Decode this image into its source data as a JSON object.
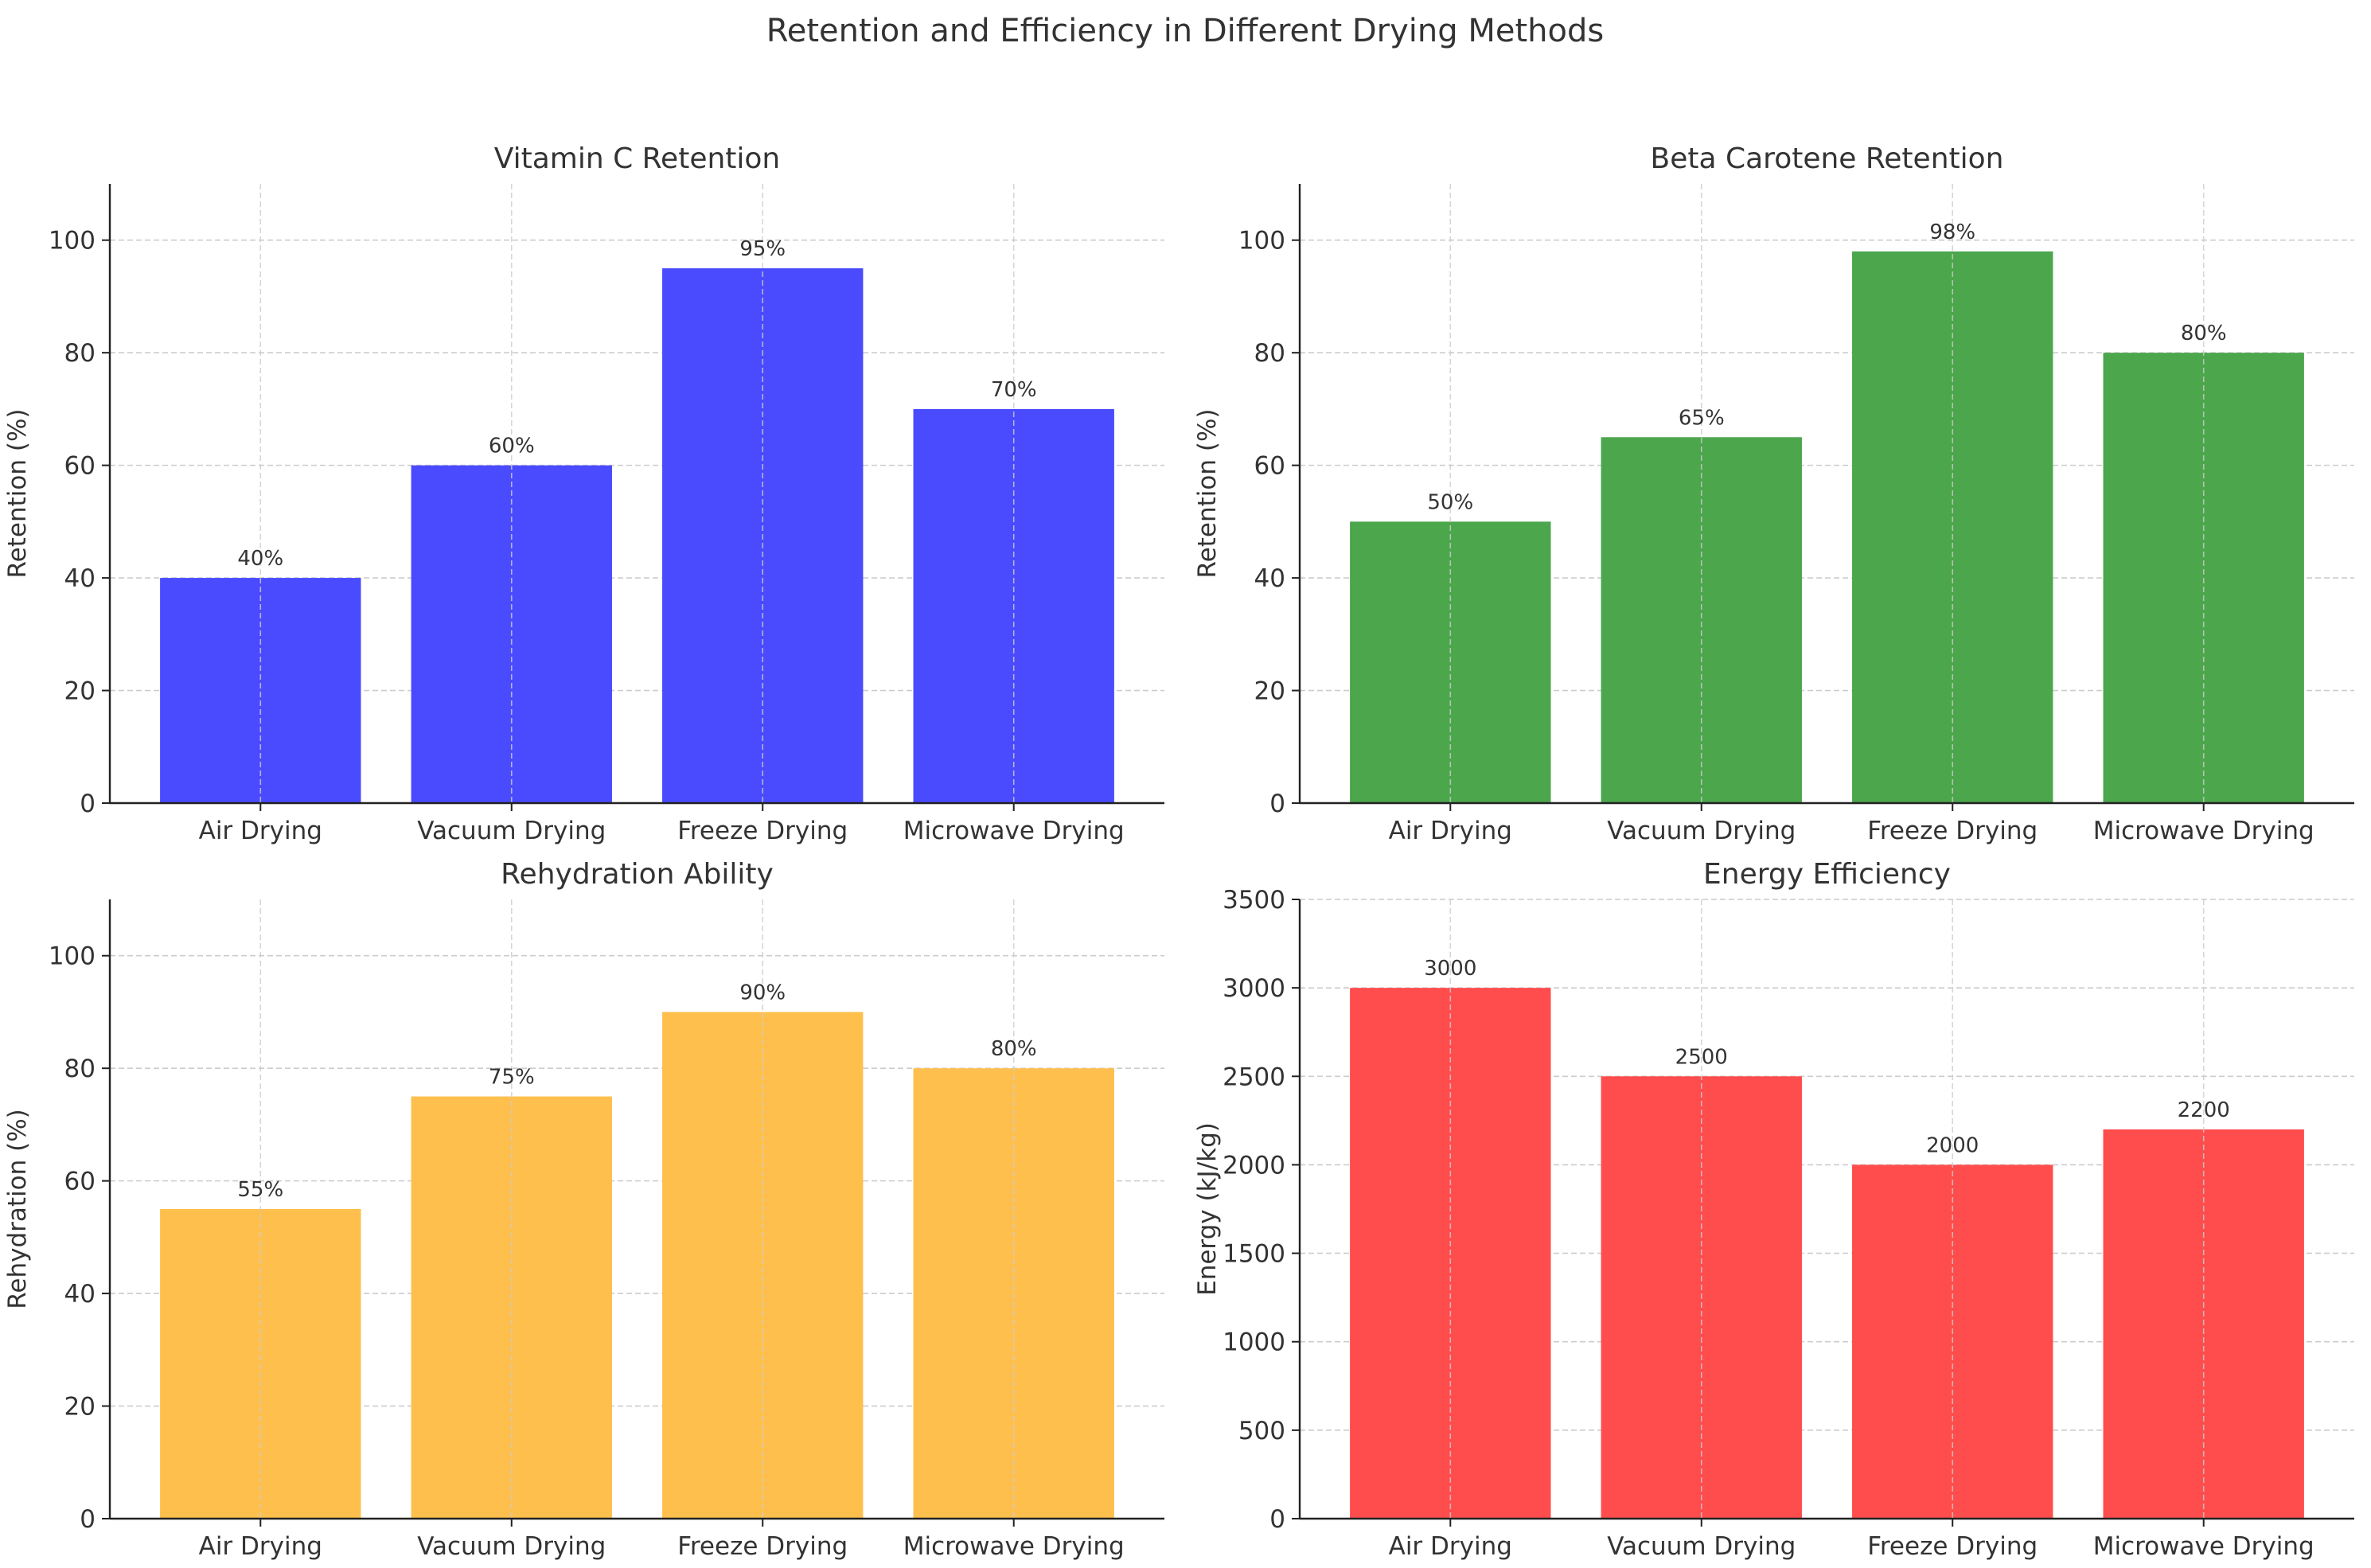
{
  "figure": {
    "title": "Retention and Efficiency in Different Drying Methods"
  },
  "chart_data": [
    {
      "id": "vitamin_c",
      "type": "bar",
      "title": "Vitamin C Retention",
      "xlabel": "",
      "ylabel": "Retention (%)",
      "categories": [
        "Air Drying",
        "Vacuum Drying",
        "Freeze Drying",
        "Microwave Drying"
      ],
      "values": [
        40,
        60,
        95,
        70
      ],
      "value_labels": [
        "40%",
        "60%",
        "95%",
        "70%"
      ],
      "ylim": [
        0,
        110
      ],
      "yticks": [
        0,
        20,
        40,
        60,
        80,
        100
      ],
      "ytick_labels": [
        "0",
        "20",
        "40",
        "60",
        "80",
        "100"
      ],
      "color": "#4a4aff",
      "grid": true
    },
    {
      "id": "beta_carotene",
      "type": "bar",
      "title": "Beta Carotene Retention",
      "xlabel": "",
      "ylabel": "Retention (%)",
      "categories": [
        "Air Drying",
        "Vacuum Drying",
        "Freeze Drying",
        "Microwave Drying"
      ],
      "values": [
        50,
        65,
        98,
        80
      ],
      "value_labels": [
        "50%",
        "65%",
        "98%",
        "80%"
      ],
      "ylim": [
        0,
        110
      ],
      "yticks": [
        0,
        20,
        40,
        60,
        80,
        100
      ],
      "ytick_labels": [
        "0",
        "20",
        "40",
        "60",
        "80",
        "100"
      ],
      "color": "#4ca64c",
      "grid": true
    },
    {
      "id": "rehydration",
      "type": "bar",
      "title": "Rehydration Ability",
      "xlabel": "",
      "ylabel": "Rehydration (%)",
      "categories": [
        "Air Drying",
        "Vacuum Drying",
        "Freeze Drying",
        "Microwave Drying"
      ],
      "values": [
        55,
        75,
        90,
        80
      ],
      "value_labels": [
        "55%",
        "75%",
        "90%",
        "80%"
      ],
      "ylim": [
        0,
        110
      ],
      "yticks": [
        0,
        20,
        40,
        60,
        80,
        100
      ],
      "ytick_labels": [
        "0",
        "20",
        "40",
        "60",
        "80",
        "100"
      ],
      "color": "#ffbf4d",
      "grid": true
    },
    {
      "id": "energy",
      "type": "bar",
      "title": "Energy Efficiency",
      "xlabel": "",
      "ylabel": "Energy (kJ/kg)",
      "categories": [
        "Air Drying",
        "Vacuum Drying",
        "Freeze Drying",
        "Microwave Drying"
      ],
      "values": [
        3000,
        2500,
        2000,
        2200
      ],
      "value_labels": [
        "3000",
        "2500",
        "2000",
        "2200"
      ],
      "ylim": [
        0,
        3500
      ],
      "yticks": [
        0,
        500,
        1000,
        1500,
        2000,
        2500,
        3000,
        3500
      ],
      "ytick_labels": [
        "0",
        "500",
        "1000",
        "1500",
        "2000",
        "2500",
        "3000",
        "3500"
      ],
      "color": "#ff4c4c",
      "grid": true
    }
  ]
}
